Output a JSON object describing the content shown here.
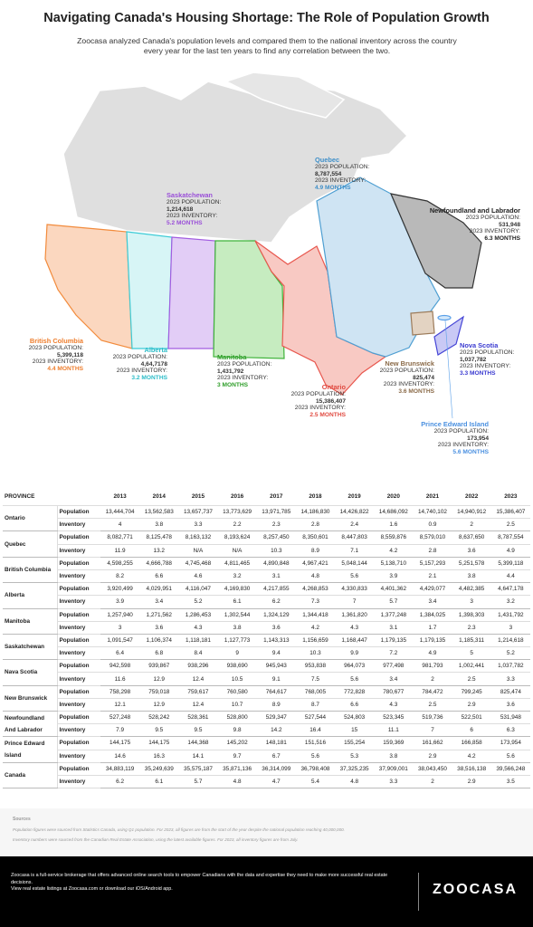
{
  "header": {
    "title": "Navigating Canada's Housing Shortage: The Role of Population Growth",
    "subtitle": "Zoocasa analyzed Canada's population levels and compared them to the national inventory across the country every year for the last ten years to find any correlation between the two."
  },
  "map": {
    "labels": [
      {
        "key": "qc",
        "name": "Quebec",
        "population_label": "2023 POPULATION:",
        "population": "8,787,554",
        "inventory_label": "2023 INVENTORY:",
        "inventory": "4.9 MONTHS"
      },
      {
        "key": "sk",
        "name": "Saskatchewan",
        "population_label": "2023 POPULATION:",
        "population": "1,214,618",
        "inventory_label": "2023 INVENTORY:",
        "inventory": "5.2 MONTHS"
      },
      {
        "key": "nl",
        "name": "Newfoundland and Labrador",
        "population_label": "2023 POPULATION:",
        "population": "531,948",
        "inventory_label": "2023 INVENTORY:",
        "inventory": "6.3 MONTHS"
      },
      {
        "key": "bc",
        "name": "British Columbia",
        "population_label": "2023 POPULATION:",
        "population": "5,399,118",
        "inventory_label": "2023 INVENTORY:",
        "inventory": "4.4 MONTHS"
      },
      {
        "key": "ab",
        "name": "Alberta",
        "population_label": "2023 POPULATION:",
        "population": "4,64,7178",
        "inventory_label": "2023 INVENTORY:",
        "inventory": "3.2 MONTHS"
      },
      {
        "key": "mb",
        "name": "Manitoba",
        "population_label": "2023 POPULATION:",
        "population": "1,431,792",
        "inventory_label": "2023 INVENTORY:",
        "inventory": "3 MONTHS"
      },
      {
        "key": "on",
        "name": "Ontario",
        "population_label": "2023 POPULATION:",
        "population": "15,386,407",
        "inventory_label": "2023 INVENTORY:",
        "inventory": "2.5 MONTHS"
      },
      {
        "key": "nb",
        "name": "New Brunswick",
        "population_label": "2023 POPULATION:",
        "population": "825,474",
        "inventory_label": "2023 INVENTORY:",
        "inventory": "3.6 MONTHS"
      },
      {
        "key": "ns",
        "name": "Nova Scotia",
        "population_label": "2023 POPULATION:",
        "population": "1,037,782",
        "inventory_label": "2023 INVENTORY:",
        "inventory": "3.3 MONTHS"
      },
      {
        "key": "pe",
        "name": "Prince Edward Island",
        "population_label": "2023 POPULATION:",
        "population": "173,954",
        "inventory_label": "2023 INVENTORY:",
        "inventory": "5.6 MONTHS"
      }
    ]
  },
  "table": {
    "headers": [
      "PROVINCE",
      "2013",
      "2014",
      "2015",
      "2016",
      "2017",
      "2018",
      "2019",
      "2020",
      "2021",
      "2022",
      "2023"
    ],
    "rows": [
      {
        "province": "Ontario",
        "metrics": [
          {
            "label": "Population",
            "values": [
              "13,444,704",
              "13,562,583",
              "13,657,737",
              "13,773,629",
              "13,971,785",
              "14,186,830",
              "14,426,822",
              "14,686,092",
              "14,740,102",
              "14,940,912",
              "15,386,407"
            ]
          },
          {
            "label": "Inventory",
            "values": [
              "4",
              "3.8",
              "3.3",
              "2.2",
              "2.3",
              "2.8",
              "2.4",
              "1.6",
              "0.9",
              "2",
              "2.5"
            ]
          }
        ]
      },
      {
        "province": "Quebec",
        "metrics": [
          {
            "label": "Population",
            "values": [
              "8,082,771",
              "8,125,478",
              "8,163,132",
              "8,193,624",
              "8,257,450",
              "8,350,601",
              "8,447,803",
              "8,559,876",
              "8,579,010",
              "8,637,650",
              "8,787,554"
            ]
          },
          {
            "label": "Inventory",
            "values": [
              "11.9",
              "13.2",
              "N/A",
              "N/A",
              "10.3",
              "8.9",
              "7.1",
              "4.2",
              "2.8",
              "3.6",
              "4.9"
            ]
          }
        ]
      },
      {
        "province": "British Columbia",
        "metrics": [
          {
            "label": "Population",
            "values": [
              "4,598,255",
              "4,666,788",
              "4,745,468",
              "4,811,465",
              "4,890,848",
              "4,967,421",
              "5,048,144",
              "5,138,710",
              "5,157,293",
              "5,251,578",
              "5,399,118"
            ]
          },
          {
            "label": "Inventory",
            "values": [
              "8.2",
              "6.6",
              "4.6",
              "3.2",
              "3.1",
              "4.8",
              "5.6",
              "3.9",
              "2.1",
              "3.8",
              "4.4"
            ]
          }
        ]
      },
      {
        "province": "Alberta",
        "metrics": [
          {
            "label": "Population",
            "values": [
              "3,920,499",
              "4,029,951",
              "4,116,047",
              "4,169,830",
              "4,217,855",
              "4,268,853",
              "4,330,833",
              "4,401,362",
              "4,429,077",
              "4,482,385",
              "4,647,178"
            ]
          },
          {
            "label": "Inventory",
            "values": [
              "3.9",
              "3.4",
              "5.2",
              "6.1",
              "6.2",
              "7.3",
              "7",
              "5.7",
              "3.4",
              "3",
              "3.2"
            ]
          }
        ]
      },
      {
        "province": "Manitoba",
        "metrics": [
          {
            "label": "Population",
            "values": [
              "1,257,940",
              "1,271,562",
              "1,286,453",
              "1,302,544",
              "1,324,129",
              "1,344,418",
              "1,361,820",
              "1,377,248",
              "1,384,025",
              "1,398,303",
              "1,431,792"
            ]
          },
          {
            "label": "Inventory",
            "values": [
              "3",
              "3.6",
              "4.3",
              "3.8",
              "3.6",
              "4.2",
              "4.3",
              "3.1",
              "1.7",
              "2.3",
              "3"
            ]
          }
        ]
      },
      {
        "province": "Saskatchewan",
        "metrics": [
          {
            "label": "Population",
            "values": [
              "1,091,547",
              "1,106,374",
              "1,118,181",
              "1,127,773",
              "1,143,313",
              "1,156,659",
              "1,168,447",
              "1,179,135",
              "1,179,135",
              "1,185,311",
              "1,214,618"
            ]
          },
          {
            "label": "Inventory",
            "values": [
              "6.4",
              "6.8",
              "8.4",
              "9",
              "9.4",
              "10.3",
              "9.9",
              "7.2",
              "4.9",
              "5",
              "5.2"
            ]
          }
        ]
      },
      {
        "province": "Nava Scotia",
        "metrics": [
          {
            "label": "Population",
            "values": [
              "942,598",
              "939,867",
              "938,296",
              "938,690",
              "945,943",
              "953,838",
              "964,073",
              "977,498",
              "981,793",
              "1,002,441",
              "1,037,782"
            ]
          },
          {
            "label": "Inventory",
            "values": [
              "11.6",
              "12.9",
              "12.4",
              "10.5",
              "9.1",
              "7.5",
              "5.6",
              "3.4",
              "2",
              "2.5",
              "3.3"
            ]
          }
        ]
      },
      {
        "province": "New Brunswick",
        "metrics": [
          {
            "label": "Population",
            "values": [
              "758,298",
              "759,018",
              "759,617",
              "760,580",
              "764,617",
              "768,005",
              "772,828",
              "780,677",
              "784,472",
              "799,245",
              "825,474"
            ]
          },
          {
            "label": "Inventory",
            "values": [
              "12.1",
              "12.9",
              "12.4",
              "10.7",
              "8.9",
              "8.7",
              "6.6",
              "4.3",
              "2.5",
              "2.9",
              "3.6"
            ]
          }
        ]
      },
      {
        "province": "Newfoundland And Labrador",
        "metrics": [
          {
            "label": "Population",
            "values": [
              "527,248",
              "528,242",
              "528,361",
              "528,800",
              "529,347",
              "527,544",
              "524,803",
              "523,345",
              "519,736",
              "522,501",
              "531,948"
            ]
          },
          {
            "label": "Inventory",
            "values": [
              "7.9",
              "9.5",
              "9.5",
              "9.8",
              "14.2",
              "16.4",
              "15",
              "11.1",
              "7",
              "6",
              "6.3"
            ]
          }
        ]
      },
      {
        "province": "Prince Edward Island",
        "metrics": [
          {
            "label": "Population",
            "values": [
              "144,175",
              "144,175",
              "144,368",
              "145,202",
              "148,181",
              "151,516",
              "155,254",
              "159,369",
              "161,662",
              "166,858",
              "173,954"
            ]
          },
          {
            "label": "Inventory",
            "values": [
              "14.6",
              "16.3",
              "14.1",
              "9.7",
              "6.7",
              "5.6",
              "5.3",
              "3.8",
              "2.9",
              "4.2",
              "5.6"
            ]
          }
        ]
      },
      {
        "province": "Canada",
        "metrics": [
          {
            "label": "Population",
            "values": [
              "34,883,119",
              "35,249,639",
              "35,575,187",
              "35,871,136",
              "36,314,099",
              "36,798,408",
              "37,325,235",
              "37,909,001",
              "38,043,450",
              "38,516,138",
              "39,566,248"
            ]
          },
          {
            "label": "Inventory",
            "values": [
              "6.2",
              "6.1",
              "5.7",
              "4.8",
              "4.7",
              "5.4",
              "4.8",
              "3.3",
              "2",
              "2.9",
              "3.5"
            ]
          }
        ]
      }
    ]
  },
  "sources": {
    "heading": "Sources",
    "lines": [
      "Population figures were sourced from Statistics Canada, using Q1 population. For 2023, all figures are from the start of the year despite the national population reaching 40,000,000.",
      "Inventory numbers were sourced from the Canadian Real Estate Association, using the latest available figures. For 2023, all inventory figures are from July."
    ]
  },
  "footer": {
    "lines": [
      "Zoocasa is a full-service brokerage that offers advanced online search tools to empower Canadians with the data and expertise they need to make more successful real estate decisions.",
      "View real estate listings at Zoocasa.com or download our iOS/Android app."
    ],
    "logo": "ZOOCASA"
  }
}
